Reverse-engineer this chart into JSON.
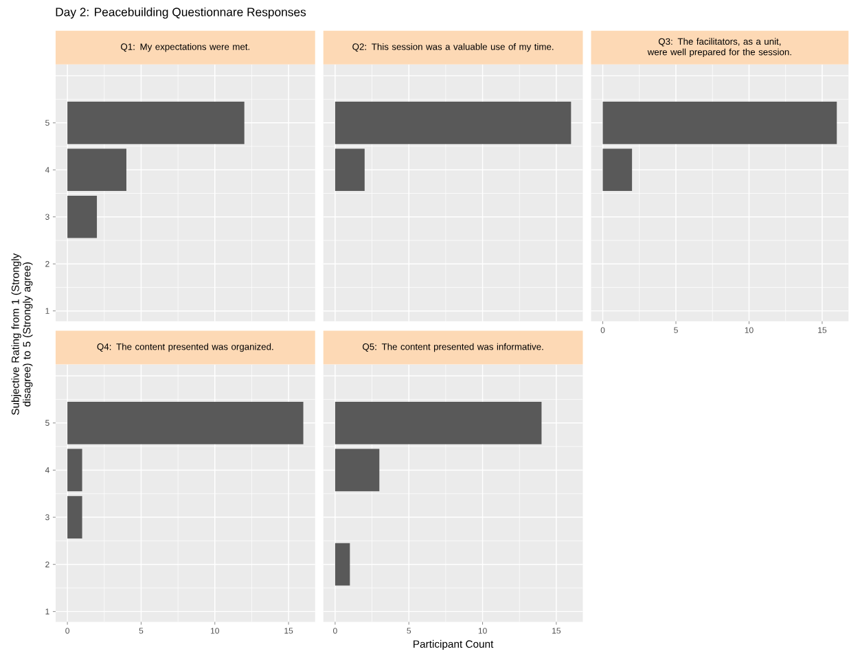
{
  "chart_data": [
    {
      "type": "bar",
      "orientation": "horizontal",
      "title": "Q1: My expectations were met.",
      "annotations": [
        "Day 2: Peacebuilding Questionnare Responses"
      ],
      "ylabel": "Subjective Rating from 1 (Strongly disagree) to 5 (Strongly agree)",
      "categories": [
        "5",
        "4",
        "3",
        "2",
        "1"
      ],
      "values": [
        12,
        4,
        2,
        null,
        null
      ],
      "color": "#595959",
      "xlim": [
        -0.8,
        16.8
      ],
      "xticks": [
        0,
        5,
        10,
        15
      ],
      "grid": true,
      "tick_labels": "y"
    },
    {
      "type": "bar",
      "orientation": "horizontal",
      "title": "Q2: This session was a valuable use of my time.",
      "categories": [
        "5",
        "4",
        "3",
        "2",
        "1"
      ],
      "values": [
        16,
        2,
        null,
        null,
        null
      ],
      "color": "#595959",
      "xlim": [
        -0.8,
        16.8
      ],
      "xticks": [
        0,
        5,
        10,
        15
      ],
      "grid": true,
      "tick_labels": false
    },
    {
      "type": "bar",
      "orientation": "horizontal",
      "title": "Q3: The facilitators, as a unit, were well prepared for the session.",
      "categories": [
        "5",
        "4",
        "3",
        "2",
        "1"
      ],
      "values": [
        16,
        2,
        null,
        null,
        null
      ],
      "color": "#595959",
      "xlim": [
        -0.8,
        16.8
      ],
      "xticks": [
        0,
        5,
        10,
        15
      ],
      "grid": true,
      "tick_labels": "x"
    },
    {
      "type": "bar",
      "orientation": "horizontal",
      "title": "Q4: The content presented was organized.",
      "categories": [
        "5",
        "4",
        "3",
        "2",
        "1"
      ],
      "values": [
        16,
        1,
        1,
        null,
        null
      ],
      "color": "#595959",
      "xlim": [
        -0.8,
        16.8
      ],
      "xticks": [
        0,
        5,
        10,
        15
      ],
      "grid": true
    },
    {
      "type": "bar",
      "orientation": "horizontal",
      "title": "Q5: The content presented was informative.",
      "xlabel": "Participant Count",
      "categories": [
        "5",
        "4",
        "3",
        "2",
        "1"
      ],
      "values": [
        14,
        3,
        null,
        1,
        null
      ],
      "color": "#595959",
      "xlim": [
        -0.8,
        16.8
      ],
      "xticks": [
        0,
        5,
        10,
        15
      ],
      "grid": true,
      "tick_labels": "x"
    }
  ]
}
